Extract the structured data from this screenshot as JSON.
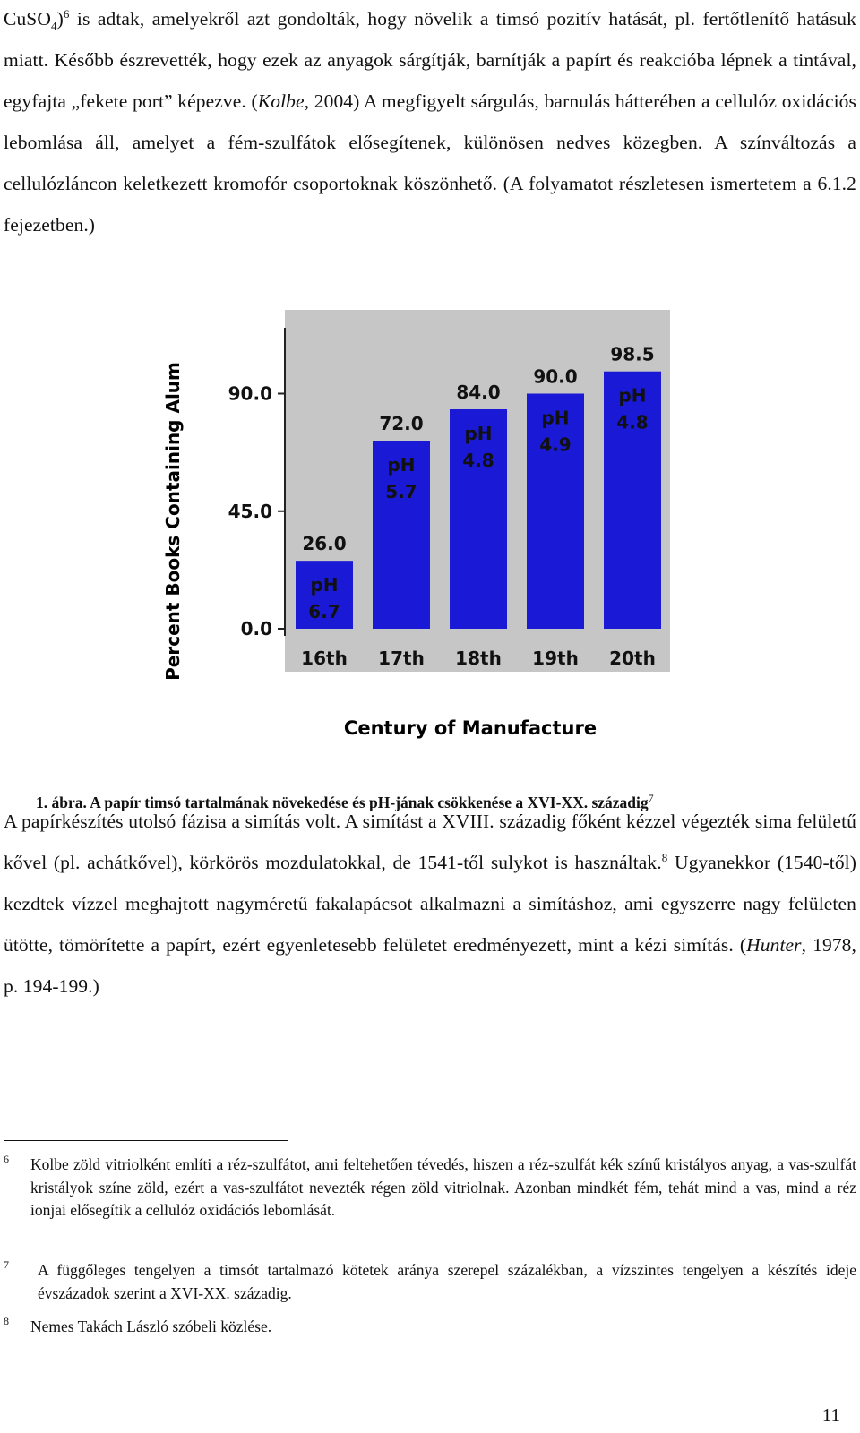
{
  "paragraphs": {
    "p1": {
      "s1": "CuSO",
      "s1_sub": "4",
      "s1_close": ")",
      "s1_sup": "6",
      "s2": " is adtak, amelyekről azt gondolták, hogy növelik a timsó pozitív hatását, pl. fertőtlenítő hatásuk miatt. Később észrevették, hogy ezek az anyagok sárgítják, barnítják a papírt és reakcióba lépnek a tintával, egyfajta „fekete port” képezve. (",
      "s2_italic": "Kolbe,",
      "s3": " 2004) A megfigyelt sárgulás, barnulás hátterében a cellulóz oxidációs lebomlása áll, amelyet a fém-szulfátok elősegítenek, különösen nedves közegben. A színváltozás a cellulózláncon keletkezett kromofór csoportoknak köszönhető. (A folyamatot részletesen ismertetem a 6.1.2 fejezetben.)"
    },
    "p2": {
      "s1": "A papírkészítés utolsó fázisa a simítás volt. A simítást a XVIII. századig főként kézzel végezték sima felületű kővel (pl. achátkővel), körkörös mozdulatokkal, de 1541-től sulykot is használtak.",
      "s1_sup": "8",
      "s2": " Ugyanekkor (1540-től) kezdtek vízzel meghajtott nagyméretű fakalapácsot alkalmazni a simításhoz, ami egyszerre nagy felületen ütötte, tömörítette a papírt, ezért egyenletesebb felületet eredményezett, mint a kézi simítás. (",
      "s2_italic": "Hunter",
      "s3": ", 1978, p. 194-199.)"
    }
  },
  "figure": {
    "caption": "1. ábra. A papír timsó tartalmának növekedése és pH-jának csökkenése a XVI-XX. századig",
    "caption_sup": "7"
  },
  "chart_data": {
    "type": "bar",
    "title": "",
    "xlabel": "Century of Manufacture",
    "ylabel": "Percent Books Containing Alum",
    "categories": [
      "16th",
      "17th",
      "18th",
      "19th",
      "20th"
    ],
    "values": [
      26.0,
      72.0,
      84.0,
      90.0,
      98.5
    ],
    "value_labels": [
      "26.0",
      "72.0",
      "84.0",
      "90.0",
      "98.5"
    ],
    "ph_prefix": "pH",
    "ph_values": [
      "6.7",
      "5.7",
      "4.8",
      "4.9",
      "4.8"
    ],
    "yticks": [
      0.0,
      45.0,
      90.0
    ],
    "ytick_labels": [
      "0.0",
      "45.0",
      "90.0"
    ],
    "ylim": [
      0,
      120
    ],
    "bar_color": "#1a1ad6",
    "panel_color": "#c6c6c6"
  },
  "footnotes": [
    {
      "number": "6",
      "text": "Kolbe zöld vitriolként említi a réz-szulfátot, ami feltehetően tévedés, hiszen a réz-szulfát kék színű kristályos anyag, a vas-szulfát kristályok színe zöld, ezért a vas-szulfátot nevezték régen zöld vitriolnak. Azonban mindkét fém, tehát mind a vas, mind a réz ionjai elősegítik a cellulóz oxidációs lebomlását."
    },
    {
      "number": "7",
      "text": "A függőleges tengelyen a timsót tartalmazó kötetek aránya szerepel százalékban, a vízszintes tengelyen a készítés ideje évszázadok szerint a XVI-XX. századig."
    },
    {
      "number": "8",
      "text": "Nemes Takách László szóbeli közlése."
    }
  ],
  "page_number": "11"
}
